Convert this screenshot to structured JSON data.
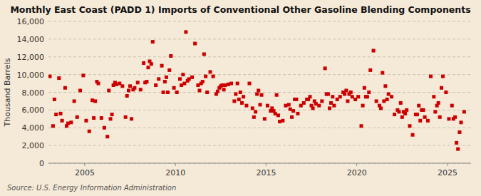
{
  "chart_data": {
    "type": "scatter",
    "title": "Monthly East Coast (PADD 1) Imports of Conventional Other Gasoline Blending Components",
    "y_label": "Thousand Barrels",
    "annotations": [
      "Source: U.S. Energy Information Administration"
    ],
    "color": "#cc0000",
    "marker": "square",
    "grid": true,
    "xlim": [
      2003.0,
      2026.3
    ],
    "xticks": [
      2005,
      2010,
      2015,
      2020,
      2025
    ],
    "ylim": [
      0,
      16000
    ],
    "yticks": [
      0,
      {
        "value": 2000,
        "label": "2,000"
      },
      {
        "value": 4000,
        "label": "4,000"
      },
      {
        "value": 6000,
        "label": "6,000"
      },
      {
        "value": 8000,
        "label": "8,000"
      },
      {
        "value": 10000,
        "label": "10,000"
      },
      {
        "value": 12000,
        "label": "12,000"
      },
      {
        "value": 14000,
        "label": "14,000"
      },
      {
        "value": 16000,
        "label": "16,000"
      }
    ],
    "x": [
      2003.08,
      2003.25,
      2003.33,
      2003.42,
      2003.58,
      2003.67,
      2003.75,
      2003.92,
      2004.0,
      2004.08,
      2004.25,
      2004.42,
      2004.58,
      2004.75,
      2004.92,
      2005.08,
      2005.25,
      2005.42,
      2005.5,
      2005.58,
      2005.67,
      2005.75,
      2005.92,
      2006.08,
      2006.25,
      2006.33,
      2006.42,
      2006.5,
      2006.58,
      2006.67,
      2006.75,
      2006.92,
      2007.08,
      2007.25,
      2007.33,
      2007.42,
      2007.5,
      2007.58,
      2007.67,
      2007.75,
      2007.92,
      2008.08,
      2008.25,
      2008.33,
      2008.42,
      2008.5,
      2008.58,
      2008.67,
      2008.75,
      2008.92,
      2009.08,
      2009.25,
      2009.33,
      2009.42,
      2009.5,
      2009.58,
      2009.67,
      2009.75,
      2009.92,
      2010.08,
      2010.25,
      2010.33,
      2010.42,
      2010.5,
      2010.58,
      2010.67,
      2010.75,
      2010.92,
      2011.08,
      2011.25,
      2011.33,
      2011.42,
      2011.5,
      2011.58,
      2011.67,
      2011.75,
      2011.92,
      2012.08,
      2012.25,
      2012.33,
      2012.42,
      2012.5,
      2012.58,
      2012.67,
      2012.75,
      2012.92,
      2013.08,
      2013.25,
      2013.33,
      2013.42,
      2013.5,
      2013.58,
      2013.67,
      2013.75,
      2013.92,
      2014.08,
      2014.25,
      2014.33,
      2014.42,
      2014.5,
      2014.58,
      2014.67,
      2014.75,
      2014.92,
      2015.08,
      2015.25,
      2015.33,
      2015.42,
      2015.5,
      2015.58,
      2015.67,
      2015.75,
      2015.92,
      2016.08,
      2016.25,
      2016.33,
      2016.42,
      2016.5,
      2016.58,
      2016.67,
      2016.75,
      2016.92,
      2017.08,
      2017.25,
      2017.33,
      2017.42,
      2017.5,
      2017.58,
      2017.67,
      2017.75,
      2017.92,
      2018.08,
      2018.25,
      2018.33,
      2018.42,
      2018.5,
      2018.58,
      2018.67,
      2018.75,
      2018.92,
      2019.08,
      2019.25,
      2019.33,
      2019.42,
      2019.5,
      2019.58,
      2019.67,
      2019.75,
      2019.92,
      2020.08,
      2020.25,
      2020.33,
      2020.42,
      2020.5,
      2020.58,
      2020.67,
      2020.75,
      2020.92,
      2021.08,
      2021.25,
      2021.33,
      2021.42,
      2021.5,
      2021.58,
      2021.67,
      2021.75,
      2021.92,
      2022.08,
      2022.25,
      2022.33,
      2022.42,
      2022.5,
      2022.58,
      2022.67,
      2022.75,
      2022.92,
      2023.08,
      2023.25,
      2023.33,
      2023.42,
      2023.5,
      2023.58,
      2023.67,
      2023.75,
      2023.92,
      2024.08,
      2024.25,
      2024.33,
      2024.42,
      2024.5,
      2024.58,
      2024.67,
      2024.75,
      2024.92,
      2025.08,
      2025.25,
      2025.33,
      2025.42,
      2025.5,
      2025.58,
      2025.67,
      2025.75,
      2025.92
    ],
    "values": [
      9800,
      4200,
      7200,
      5500,
      9600,
      5600,
      4800,
      8500,
      4200,
      4500,
      4600,
      7000,
      5200,
      8200,
      9900,
      4800,
      3600,
      7100,
      5100,
      7000,
      9200,
      9000,
      5100,
      4000,
      3000,
      8200,
      5000,
      5500,
      8800,
      9100,
      8900,
      9000,
      8700,
      5200,
      7600,
      8200,
      8700,
      5000,
      8300,
      8500,
      9100,
      8300,
      11300,
      9100,
      9200,
      10800,
      11500,
      11200,
      13700,
      8800,
      9500,
      11000,
      8000,
      9200,
      9700,
      8000,
      10500,
      12100,
      8500,
      8000,
      9500,
      8800,
      10000,
      9000,
      14800,
      9300,
      9500,
      9700,
      13500,
      8800,
      8200,
      9000,
      9200,
      12300,
      9800,
      8000,
      10300,
      9800,
      7800,
      8100,
      8500,
      8700,
      8800,
      8300,
      8800,
      8900,
      9000,
      7000,
      7800,
      9000,
      7200,
      8000,
      6800,
      7500,
      6500,
      9000,
      6200,
      5200,
      5800,
      7800,
      8200,
      6600,
      7700,
      5000,
      6500,
      5900,
      6200,
      5900,
      5600,
      7700,
      5400,
      4700,
      4800,
      6500,
      6600,
      6100,
      5200,
      5900,
      7200,
      7200,
      5600,
      6500,
      6800,
      7200,
      7200,
      7500,
      6500,
      6200,
      7000,
      6700,
      6500,
      7000,
      10700,
      7800,
      7800,
      6200,
      6800,
      7500,
      6500,
      7200,
      7500,
      8000,
      7800,
      8200,
      7000,
      7800,
      8000,
      7500,
      7200,
      7500,
      4200,
      6500,
      8500,
      7500,
      7500,
      8000,
      10500,
      12700,
      7000,
      6500,
      6200,
      10200,
      7000,
      8700,
      7200,
      7800,
      7500,
      5500,
      6000,
      5800,
      6800,
      5200,
      5800,
      5600,
      6000,
      4200,
      3200,
      5500,
      5500,
      6500,
      4800,
      6000,
      6000,
      5200,
      4800,
      9800,
      7500,
      5800,
      6500,
      6800,
      5200,
      8500,
      9800,
      8000,
      5000,
      6500,
      5000,
      5200,
      2300,
      1600,
      3500,
      4600,
      5800
    ]
  }
}
